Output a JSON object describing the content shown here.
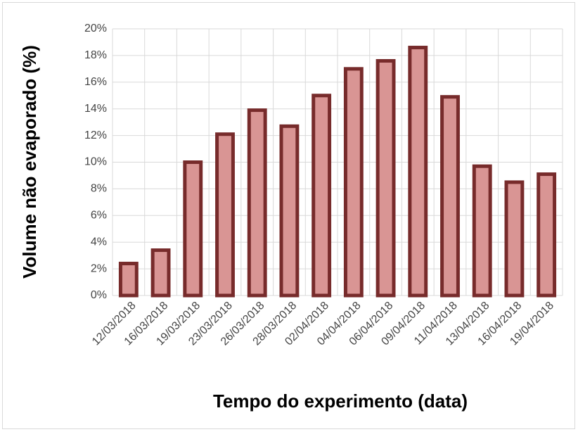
{
  "chart_data": {
    "type": "bar",
    "x_label": "Tempo do experimento (data)",
    "y_label": "Volume não evaporado (%)",
    "categories": [
      "12/03/2018",
      "16/03/2018",
      "19/03/2018",
      "23/03/2018",
      "26/03/2018",
      "28/03/2018",
      "02/04/2018",
      "04/04/2018",
      "06/04/2018",
      "09/04/2018",
      "11/04/2018",
      "13/04/2018",
      "16/04/2018",
      "19/04/2018"
    ],
    "values": [
      2.4,
      3.4,
      10.0,
      12.1,
      13.9,
      12.7,
      15.0,
      17.0,
      17.6,
      18.6,
      14.9,
      9.7,
      8.5,
      9.1
    ],
    "color": "#d99594",
    "edge_color": "#772b2b",
    "ylim": [
      0,
      20
    ],
    "yticks": [
      {
        "value": 0,
        "label": "0%"
      },
      {
        "value": 2,
        "label": "2%"
      },
      {
        "value": 4,
        "label": "4%"
      },
      {
        "value": 6,
        "label": "6%"
      },
      {
        "value": 8,
        "label": "8%"
      },
      {
        "value": 10,
        "label": "10%"
      },
      {
        "value": 12,
        "label": "12%"
      },
      {
        "value": 14,
        "label": "14%"
      },
      {
        "value": 16,
        "label": "16%"
      },
      {
        "value": 18,
        "label": "18%"
      },
      {
        "value": 20,
        "label": "20%"
      }
    ],
    "grid": true
  }
}
